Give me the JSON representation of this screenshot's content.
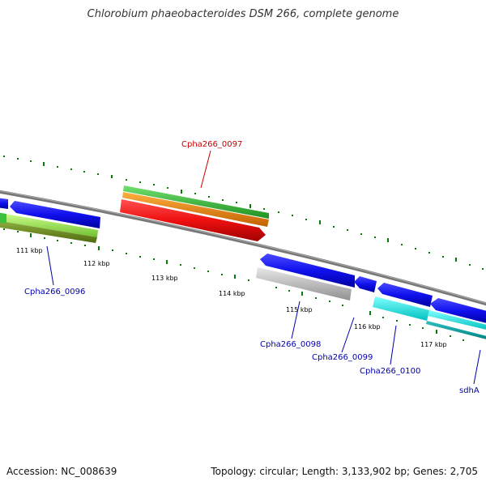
{
  "title": "Chlorobium phaeobacteroides DSM 266, complete genome",
  "accession": "Accession: NC_008639",
  "topology": "Topology: circular; Length: 3,133,902 bp; Genes: 2,705",
  "colors": {
    "backbone": "#7a7a7a",
    "cds": "#1010ee",
    "red": "#ee1010",
    "green": "#3cc13c",
    "orange": "#f08c00",
    "lightgreen": "#98f050",
    "olive": "#6a8a20",
    "gray": "#bbbbbb",
    "cyan": "#10e0e0",
    "teal": "#10a0a0",
    "tick": "#0a7a0a",
    "label_red": "#cc0000",
    "label_blue": "#0000aa"
  },
  "kbp_labels": [
    "111 kbp",
    "112 kbp",
    "113 kbp",
    "114 kbp",
    "115 kbp",
    "116 kbp",
    "117 kbp"
  ],
  "genes": [
    {
      "id": "cpha266-0097",
      "label": "Cpha266_0097",
      "color": "red"
    },
    {
      "id": "cpha266-0096",
      "label": "Cpha266_0096",
      "color": "blue"
    },
    {
      "id": "cpha266-0098",
      "label": "Cpha266_0098",
      "color": "blue"
    },
    {
      "id": "cpha266-0099",
      "label": "Cpha266_0099",
      "color": "blue"
    },
    {
      "id": "cpha266-0100",
      "label": "Cpha266_0100",
      "color": "blue"
    },
    {
      "id": "sdha",
      "label": "sdhA",
      "color": "blue"
    }
  ]
}
